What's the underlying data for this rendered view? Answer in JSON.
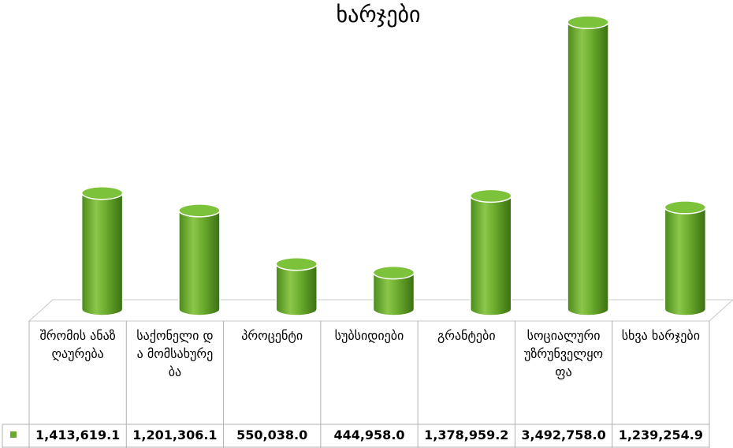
{
  "chart_data": {
    "type": "bar",
    "title": "ხარჯები",
    "categories": [
      "შრომის ანაზღაურება",
      "საქონელი და მომსახურება",
      "პროცენტი",
      "სუბსიდიები",
      "გრანტები",
      "სოციალური უზრუნველყოფა",
      "სხვა ხარჯები"
    ],
    "value_labels": [
      "1,413,619.1",
      "1,201,306.1",
      "550,038.0",
      "444,958.0",
      "1,378,959.2",
      "3,492,758.0",
      "1,239,254.9"
    ],
    "series": [
      {
        "values": [
          1413619.1,
          1201306.1,
          550038.0,
          444958.0,
          1378959.2,
          3492758.0,
          1239254.9
        ]
      }
    ],
    "ylim": [
      0,
      3600000
    ],
    "grid": false,
    "legend": "data-table",
    "colors": {
      "bar": "#6aaa2c",
      "bar_dark": "#3f7a17",
      "bar_light": "#9fd15f",
      "bar_top": "#7cc23a",
      "floor": "#ffffff",
      "floor_border": "#c8c8c8"
    }
  }
}
